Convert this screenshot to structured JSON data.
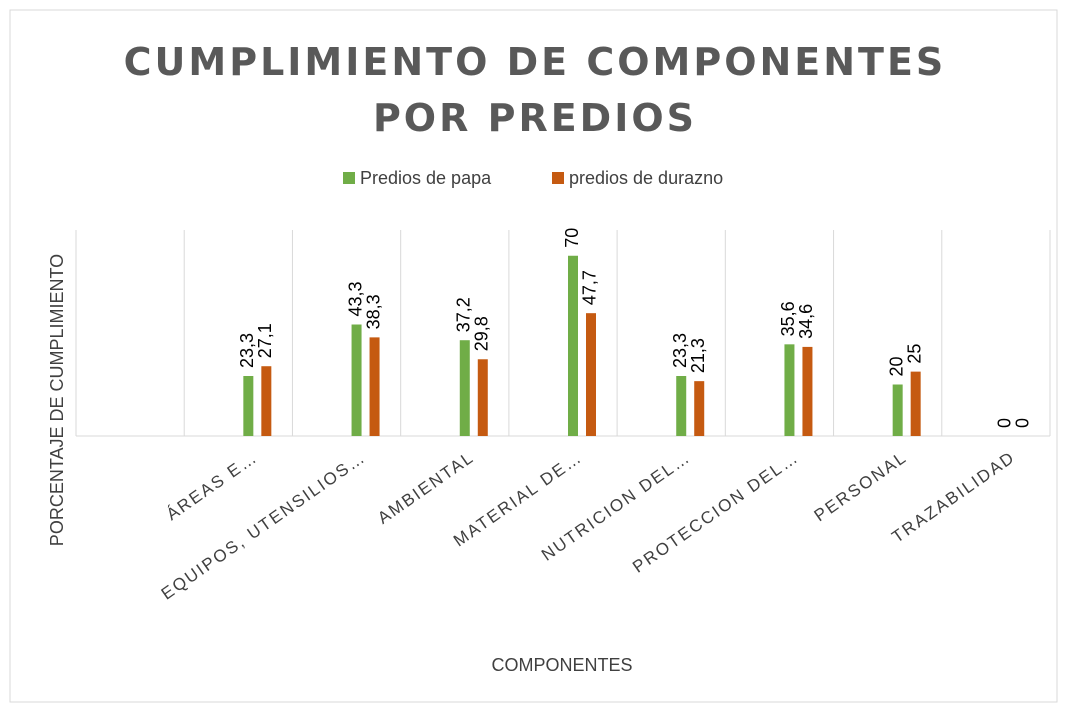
{
  "chart_data": {
    "type": "bar",
    "title": "CUMPLIMIENTO DE COMPONENTES POR PREDIOS",
    "x_label": "COMPONENTES",
    "y_label": "PORCENTAJE DE CUMPLIMIENTO",
    "categories": [
      null,
      "ÁREAS E…",
      "EQUIPOS, UTENSILIOS…",
      "AMBIENTAL",
      "MATERIAL DE…",
      "NUTRICION DEL…",
      "PROTECCION DEL…",
      "PERSONAL",
      "TRAZABILIDAD"
    ],
    "series": [
      {
        "name": "Predios de papa",
        "color": "#70ad47",
        "values": [
          null,
          23.3,
          43.3,
          37.2,
          70,
          23.3,
          35.6,
          20,
          0
        ],
        "value_labels": [
          null,
          "23,3",
          "43,3",
          "37,2",
          "70",
          "23,3",
          "35,6",
          "20",
          "0"
        ]
      },
      {
        "name": "predios de durazno",
        "color": "#c55a11",
        "values": [
          null,
          27.1,
          38.3,
          29.8,
          47.7,
          21.3,
          34.6,
          25,
          0
        ],
        "value_labels": [
          null,
          "27,1",
          "38,3",
          "29,8",
          "47,7",
          "21,3",
          "34,6",
          "25",
          "0"
        ]
      }
    ],
    "ylim": [
      0,
      80
    ],
    "grid": true,
    "legend": "top"
  }
}
